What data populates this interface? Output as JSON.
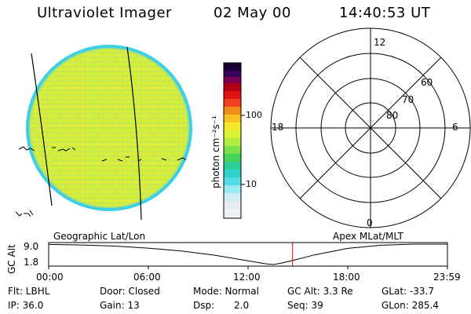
{
  "header": {
    "title": "Ultraviolet Imager",
    "date": "02 May 00",
    "time": "14:40:53 UT"
  },
  "colorbar": {
    "unit_label": "photon cm⁻²s⁻¹",
    "tick_100": "100",
    "tick_10": "10"
  },
  "polar": {
    "mlt_12": "12",
    "mlt_18": "18",
    "mlt_6": "6",
    "mlt_0": "0",
    "lat_60": "60",
    "lat_70": "70",
    "lat_80": "80"
  },
  "orbit": {
    "left_caption": "Geographic Lat/Lon",
    "right_caption": "Apex MLat/MLT",
    "axis_label": "GC Alt",
    "y_top": "9.0",
    "y_bottom": "1.8",
    "times": [
      "00:00",
      "06:00",
      "12:00",
      "18:00",
      "23:59"
    ]
  },
  "chart_data": {
    "type": "line",
    "title": "",
    "xlabel": "",
    "ylabel": "GC Alt",
    "x": [
      0,
      2,
      4,
      6,
      8,
      10,
      12,
      13,
      13.5,
      14,
      15,
      16,
      18,
      20,
      22,
      24
    ],
    "series": [
      {
        "values": [
          8.9,
          8.7,
          8.3,
          7.6,
          6.6,
          5.1,
          3.1,
          2.1,
          1.8,
          2.3,
          3.7,
          5.2,
          7.5,
          8.6,
          9.0,
          9.0
        ]
      }
    ],
    "xlim": [
      0,
      24
    ],
    "ylim": [
      1.8,
      9.0
    ],
    "marker_time": 14.68,
    "marker_color": "#e00000"
  },
  "footer": {
    "filter": "Flt: LBHL",
    "ip": "IP: 36.0",
    "door": "Door: Closed",
    "gain": "Gain: 13",
    "mode": "Mode: Normal",
    "dsp_label": "Dsp:",
    "dsp_value": "2.0",
    "gc_alt": "GC Alt: 3.3 Re",
    "seq": "Seq: 39",
    "glat": "GLat: -33.7",
    "glon": "GLon: 285.4"
  },
  "colors": {
    "disk_fill": "#d6ee3a",
    "disk_edge": "#33d2ee",
    "marker": "#e00000"
  }
}
